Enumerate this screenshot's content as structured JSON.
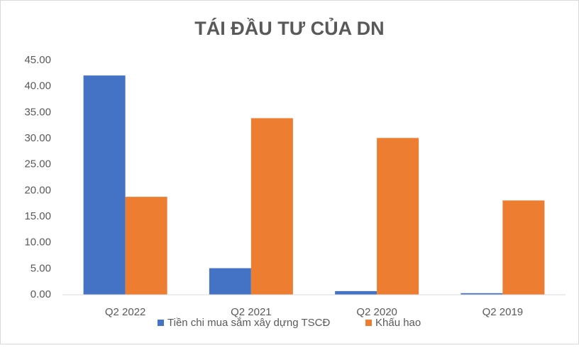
{
  "chart_data": {
    "type": "bar",
    "title": "TÁI ĐẦU TƯ CỦA DN",
    "categories": [
      "Q2 2022",
      "Q2 2021",
      "Q2 2020",
      "Q2 2019"
    ],
    "series": [
      {
        "name": "Tiền chi mua sắm xây dựng TSCĐ",
        "color": "#4472c4",
        "values": [
          42.1,
          5.1,
          0.7,
          0.3
        ]
      },
      {
        "name": "Khấu hao",
        "color": "#ed7d31",
        "values": [
          18.8,
          33.9,
          30.1,
          18.1
        ]
      }
    ],
    "ylim": [
      0,
      45
    ],
    "yticks": [
      {
        "value": 0,
        "label": "0.00"
      },
      {
        "value": 5,
        "label": "5.00"
      },
      {
        "value": 10,
        "label": "10.00"
      },
      {
        "value": 15,
        "label": "15.00"
      },
      {
        "value": 20,
        "label": "20.00"
      },
      {
        "value": 25,
        "label": "25.00"
      },
      {
        "value": 30,
        "label": "30.00"
      },
      {
        "value": 35,
        "label": "35.00"
      },
      {
        "value": 40,
        "label": "40.00"
      },
      {
        "value": 45,
        "label": "45.00"
      }
    ],
    "grid": false,
    "legend": "bottom"
  }
}
